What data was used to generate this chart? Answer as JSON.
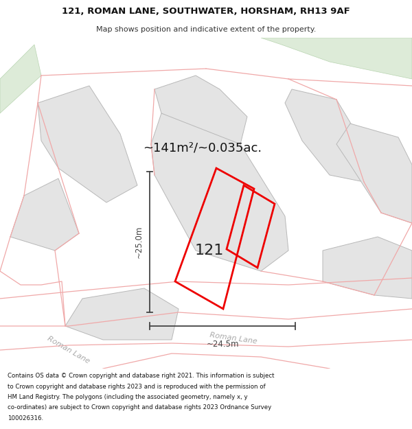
{
  "title_line1": "121, ROMAN LANE, SOUTHWATER, HORSHAM, RH13 9AF",
  "title_line2": "Map shows position and indicative extent of the property.",
  "area_label": "~141m²/~0.035ac.",
  "dim_vertical": "~25.0m",
  "dim_horizontal": "~24.5m",
  "property_number": "121",
  "footer_text": "Contains OS data © Crown copyright and database right 2021. This information is subject to Crown copyright and database rights 2023 and is reproduced with the permission of HM Land Registry. The polygons (including the associated geometry, namely x, y co-ordinates) are subject to Crown copyright and database rights 2023 Ordnance Survey 100026316.",
  "map_bg": "#f8f8f8",
  "block_fill": "#e4e4e4",
  "block_edge": "#b8b8b8",
  "green_color": "#ddebd8",
  "pink_line": "#f0a8a8",
  "red_outline": "#ee0000",
  "dim_color": "#444444",
  "road_label_color": "#aaaaaa",
  "header_bg": "#ffffff",
  "footer_bg": "#ffffff",
  "title_color": "#111111",
  "subtitle_color": "#333333",
  "footer_color": "#111111"
}
